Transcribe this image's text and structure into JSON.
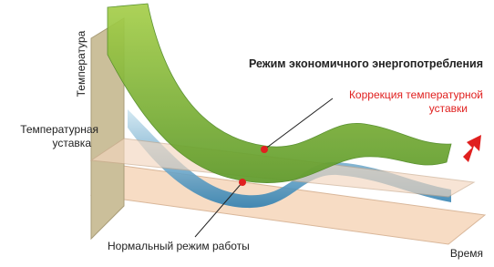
{
  "y_axis_label": "Температура",
  "x_axis_label": "Время",
  "title": "Режим экономичного энергопотребления",
  "correction_label": [
    "Коррекция температурной",
    "уставки"
  ],
  "setpoint_label": [
    "Температурная",
    "уставка"
  ],
  "normal_mode_label": "Нормальный режим работы"
}
